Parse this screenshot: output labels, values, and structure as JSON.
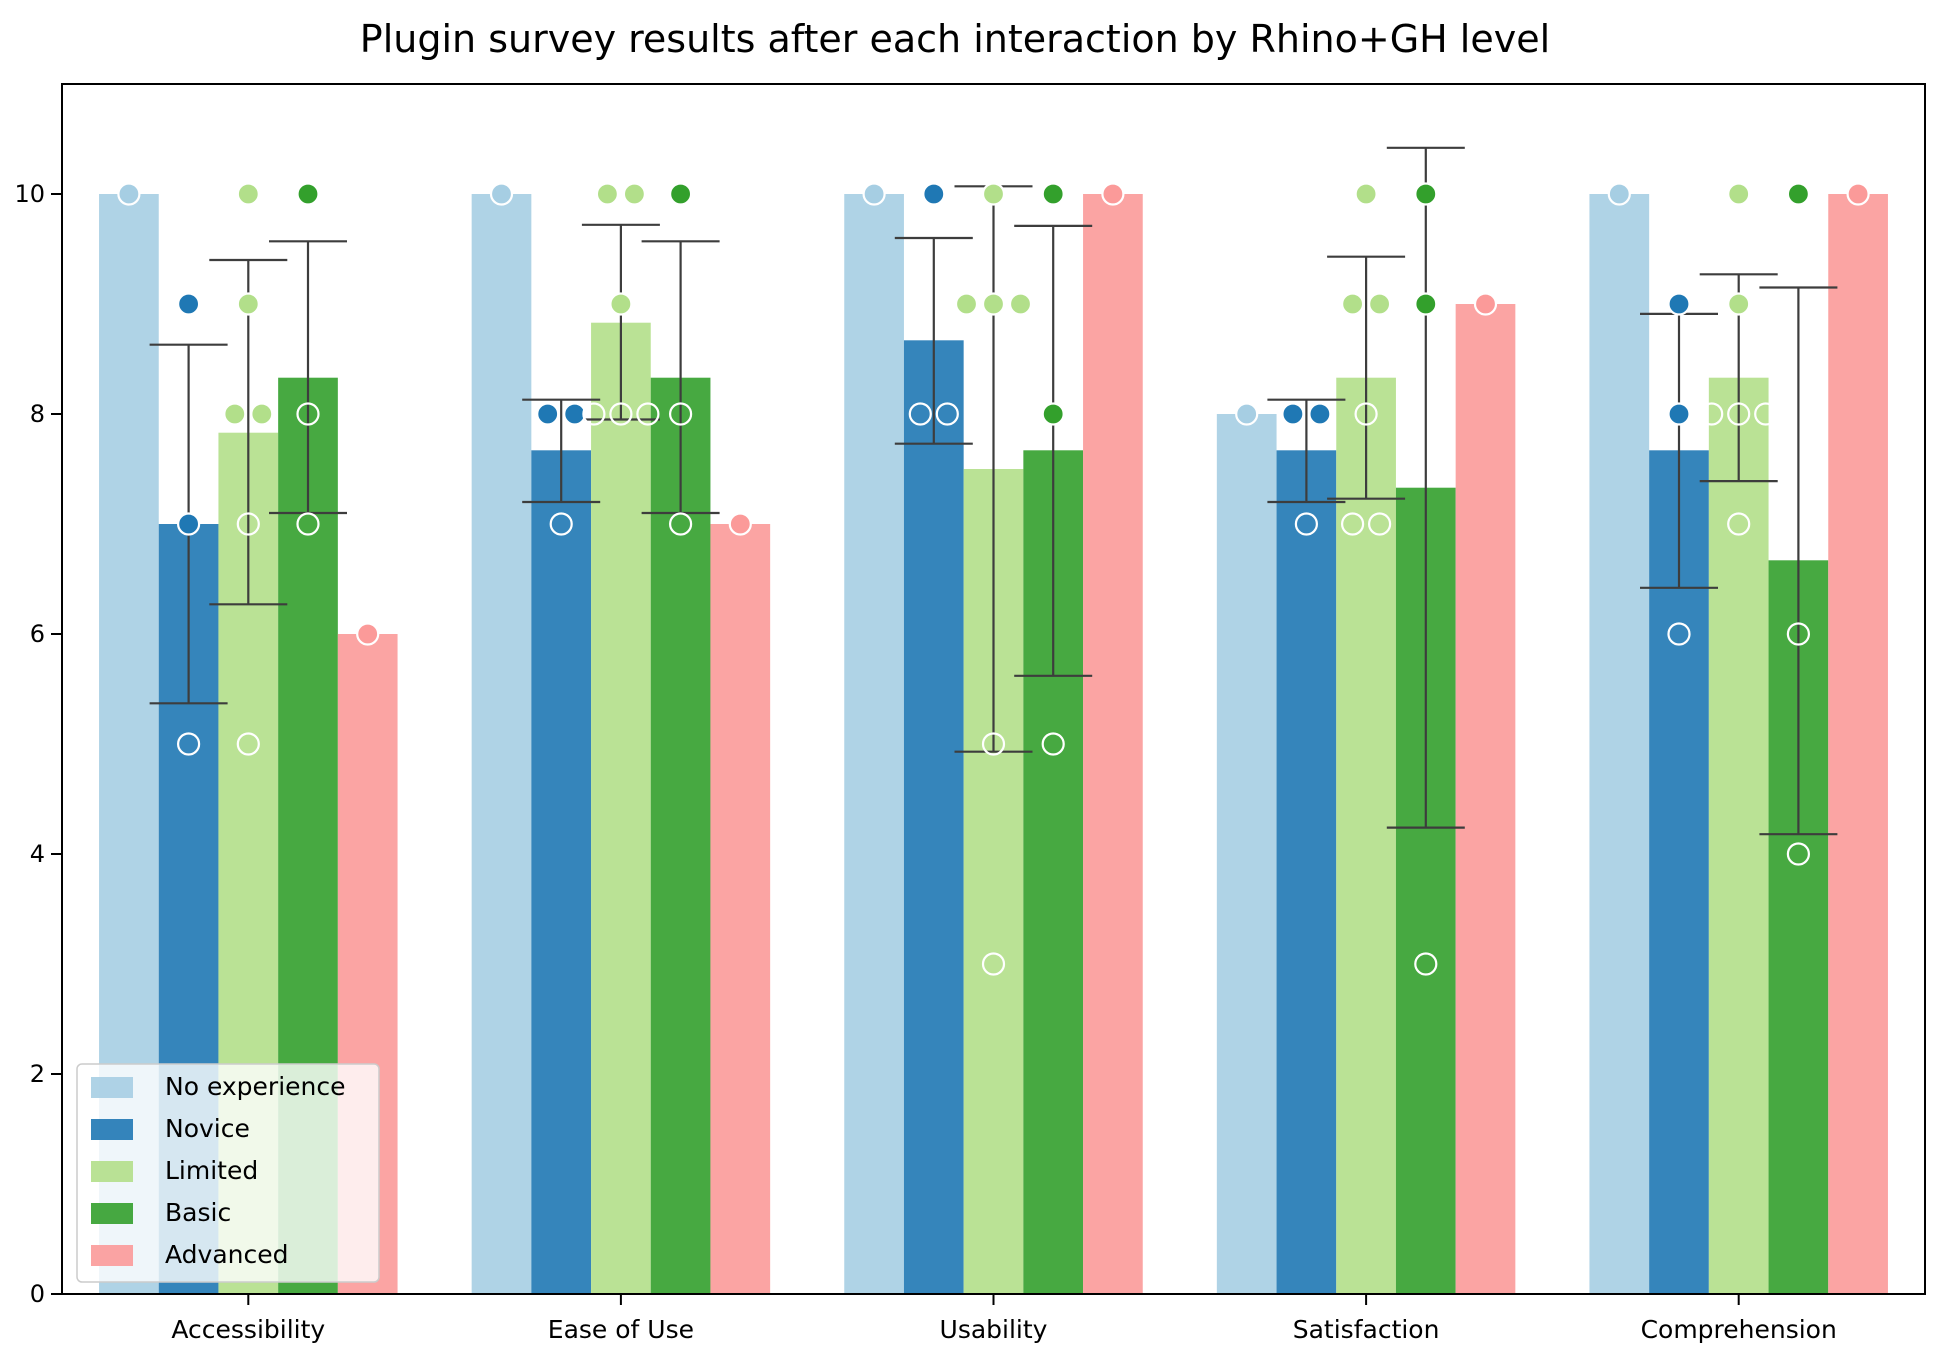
{
  "chart_data": {
    "type": "bar",
    "title": "Plugin survey results after each interaction by Rhino+GH level",
    "xlabel": "",
    "ylabel": "",
    "ylim": [
      0,
      11
    ],
    "yticks": [
      0,
      2,
      4,
      6,
      8,
      10
    ],
    "categories": [
      "Accessibility",
      "Ease of Use",
      "Usability",
      "Satisfaction",
      "Comprehension"
    ],
    "legend": {
      "position": "lower-left"
    },
    "series": [
      {
        "name": "No experience",
        "color": "#a6cee3",
        "values": [
          10,
          10,
          10,
          8,
          10
        ],
        "error": [
          null,
          null,
          null,
          null,
          null
        ],
        "points": [
          {
            "filled": [
              10
            ],
            "open": []
          },
          {
            "filled": [
              10
            ],
            "open": []
          },
          {
            "filled": [
              10
            ],
            "open": []
          },
          {
            "filled": [
              8
            ],
            "open": []
          },
          {
            "filled": [
              10
            ],
            "open": []
          }
        ]
      },
      {
        "name": "Novice",
        "color": "#1f78b4",
        "values": [
          7,
          7.67,
          8.67,
          7.67,
          7.67
        ],
        "error": [
          [
            5.37,
            8.63
          ],
          [
            7.2,
            8.13
          ],
          [
            7.73,
            9.6
          ],
          [
            7.2,
            8.13
          ],
          [
            6.42,
            8.91
          ]
        ],
        "points": [
          {
            "filled": [
              9,
              7
            ],
            "open": [
              5
            ]
          },
          {
            "filled": [
              8,
              8
            ],
            "open": [
              7
            ]
          },
          {
            "filled": [
              10
            ],
            "open": [
              8,
              8
            ]
          },
          {
            "filled": [
              8,
              8
            ],
            "open": [
              7
            ]
          },
          {
            "filled": [
              9,
              8
            ],
            "open": [
              6
            ]
          }
        ]
      },
      {
        "name": "Limited",
        "color": "#b2df8a",
        "values": [
          7.83,
          8.83,
          7.5,
          8.33,
          8.33
        ],
        "error": [
          [
            6.27,
            9.4
          ],
          [
            7.95,
            9.72
          ],
          [
            4.93,
            10.07
          ],
          [
            7.23,
            9.43
          ],
          [
            7.39,
            9.27
          ]
        ],
        "points": [
          {
            "filled": [
              10,
              9,
              8,
              8
            ],
            "open": [
              7,
              5
            ]
          },
          {
            "filled": [
              10,
              10,
              9
            ],
            "open": [
              8,
              8,
              8
            ]
          },
          {
            "filled": [
              10,
              9,
              9,
              9
            ],
            "open": [
              5,
              3
            ]
          },
          {
            "filled": [
              10,
              9,
              9
            ],
            "open": [
              8,
              7,
              7
            ]
          },
          {
            "filled": [
              10,
              9
            ],
            "open": [
              8,
              8,
              8,
              7
            ]
          }
        ]
      },
      {
        "name": "Basic",
        "color": "#33a02c",
        "values": [
          8.33,
          8.33,
          7.67,
          7.33,
          6.67
        ],
        "error": [
          [
            7.1,
            9.57
          ],
          [
            7.1,
            9.57
          ],
          [
            5.62,
            9.71
          ],
          [
            4.24,
            10.42
          ],
          [
            4.18,
            9.15
          ]
        ],
        "points": [
          {
            "filled": [
              10
            ],
            "open": [
              8,
              7
            ]
          },
          {
            "filled": [
              10
            ],
            "open": [
              8,
              7
            ]
          },
          {
            "filled": [
              10,
              8
            ],
            "open": [
              5
            ]
          },
          {
            "filled": [
              10,
              9
            ],
            "open": [
              3
            ]
          },
          {
            "filled": [
              10
            ],
            "open": [
              6,
              4
            ]
          }
        ]
      },
      {
        "name": "Advanced",
        "color": "#fb9a99",
        "values": [
          6,
          7,
          10,
          9,
          10
        ],
        "error": [
          null,
          null,
          null,
          null,
          null
        ],
        "points": [
          {
            "filled": [
              6
            ],
            "open": []
          },
          {
            "filled": [
              7
            ],
            "open": []
          },
          {
            "filled": [
              10
            ],
            "open": []
          },
          {
            "filled": [
              9
            ],
            "open": []
          },
          {
            "filled": [
              10
            ],
            "open": []
          }
        ]
      }
    ]
  }
}
